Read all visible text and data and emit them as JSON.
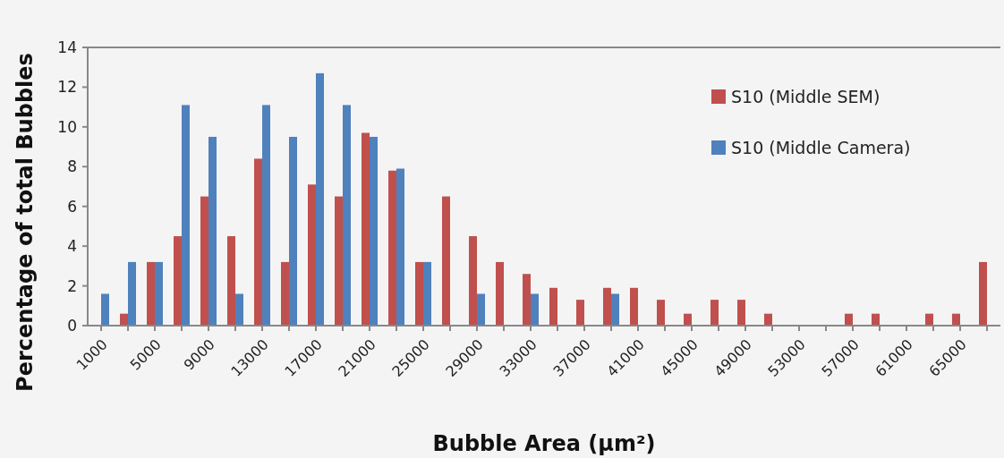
{
  "chart_data": {
    "type": "bar",
    "xlabel": "Bubble Area (μm²)",
    "ylabel": "Percentage of total Bubbles",
    "categories": [
      "1000",
      null,
      "5000",
      null,
      "9000",
      null,
      "13000",
      null,
      "17000",
      null,
      "21000",
      null,
      "25000",
      null,
      "29000",
      null,
      "33000",
      null,
      "37000",
      null,
      "41000",
      null,
      "45000",
      null,
      "49000",
      null,
      "53000",
      null,
      "57000",
      null,
      "61000",
      null,
      "65000",
      null
    ],
    "series": [
      {
        "name": "S10 (Middle SEM)",
        "color": "#c0504d",
        "values": [
          0,
          0.6,
          3.2,
          4.5,
          6.5,
          4.5,
          8.4,
          3.2,
          7.1,
          6.5,
          9.7,
          7.8,
          3.2,
          6.5,
          4.5,
          3.2,
          2.6,
          1.9,
          1.3,
          1.9,
          1.9,
          1.3,
          0.6,
          1.3,
          1.3,
          0.6,
          0,
          0,
          0.6,
          0.6,
          0,
          0.6,
          0.6,
          3.2
        ]
      },
      {
        "name": "S10 (Middle Camera)",
        "color": "#4f81bd",
        "values": [
          1.6,
          3.2,
          3.2,
          11.1,
          9.5,
          1.6,
          11.1,
          9.5,
          12.7,
          11.1,
          9.5,
          7.9,
          3.2,
          0,
          1.6,
          0,
          1.6,
          0,
          0,
          1.6,
          0,
          0,
          0,
          0,
          0,
          0,
          0,
          0,
          0,
          0,
          0,
          0,
          0,
          0
        ]
      }
    ],
    "ylim": [
      0,
      14
    ],
    "yticks": [
      0,
      2,
      4,
      6,
      8,
      10,
      12,
      14
    ],
    "legend": "top right"
  }
}
